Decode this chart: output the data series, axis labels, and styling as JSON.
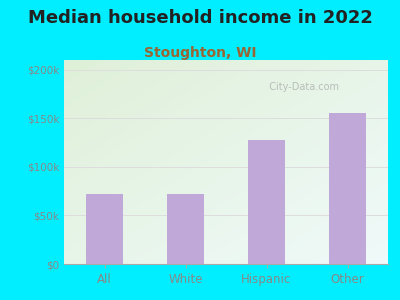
{
  "title": "Median household income in 2022",
  "subtitle": "Stoughton, WI",
  "categories": [
    "All",
    "White",
    "Hispanic",
    "Other"
  ],
  "values": [
    72000,
    72000,
    128000,
    155000
  ],
  "bar_color": "#c0a8d8",
  "ylim": [
    0,
    210000
  ],
  "yticks": [
    0,
    50000,
    100000,
    150000,
    200000
  ],
  "ytick_labels": [
    "$0",
    "$50k",
    "$100k",
    "$150k",
    "$200k"
  ],
  "background_outer": "#00eeff",
  "plot_bg_top_left": "#dff0d8",
  "plot_bg_bottom_right": "#f0fafa",
  "title_fontsize": 13,
  "subtitle_fontsize": 10,
  "watermark": "City-Data.com",
  "title_color": "#222222",
  "subtitle_color": "#996633",
  "tick_color": "#888888",
  "grid_color": "#dddddd",
  "bar_width": 0.45
}
